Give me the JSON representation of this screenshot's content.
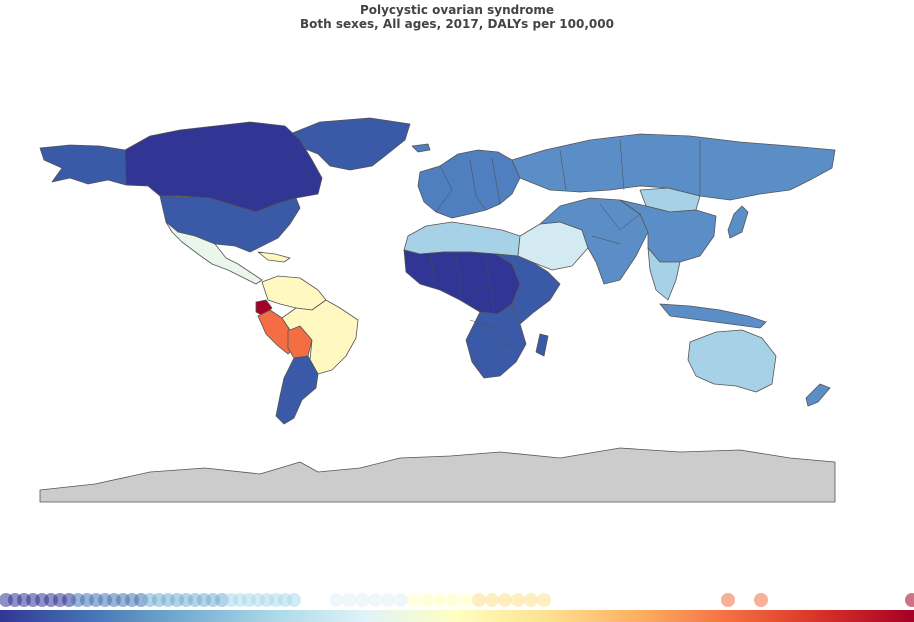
{
  "title": "Polycystic ovarian syndrome",
  "subtitle": "Both sexes, All ages, 2017, DALYs per 100,000",
  "palette": {
    "deep_blue": "#313695",
    "blue": "#3a5aa8",
    "mid_blue": "#4f7fbf",
    "steel_blue": "#5b8ec7",
    "light_blue": "#a6d1e6",
    "pale_blue": "#d4eaf3",
    "pale_mint": "#eaf6ec",
    "pale_yellow": "#fff8c0",
    "orange_red": "#f46d43",
    "dark_red": "#a50026",
    "no_data": "#cccccc"
  },
  "legend_colors": [
    "#313695",
    "#4575b4",
    "#74add1",
    "#abd9e9",
    "#e0f3f8",
    "#ffffbf",
    "#fee090",
    "#fdae61",
    "#f46d43",
    "#d73027",
    "#a50026"
  ]
}
